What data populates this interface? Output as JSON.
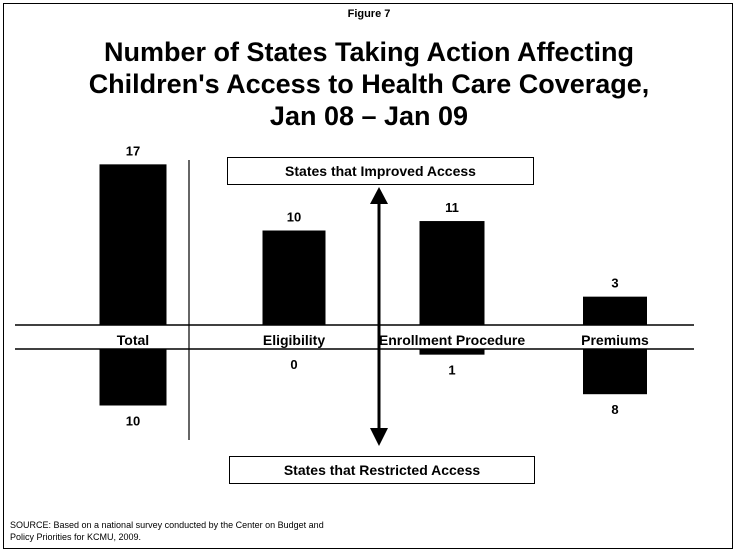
{
  "figure_label": "Figure 7",
  "title_lines": [
    "Number of States Taking Action Affecting",
    "Children's Access to Health Care Coverage,",
    "Jan 08 – Jan 09"
  ],
  "box_improved": "States that Improved Access",
  "box_restricted": "States that Restricted Access",
  "source_lines": [
    "SOURCE:  Based on a national survey conducted by the Center on Budget and",
    "Policy Priorities for KCMU, 2009."
  ],
  "chart_data": {
    "type": "bar",
    "categories": [
      "Total",
      "Eligibility",
      "Enrollment Procedure",
      "Premiums"
    ],
    "series": [
      {
        "values": [
          17,
          10,
          11,
          3
        ]
      },
      {
        "values": [
          10,
          0,
          1,
          8
        ]
      }
    ],
    "bar_color": "#000000"
  }
}
